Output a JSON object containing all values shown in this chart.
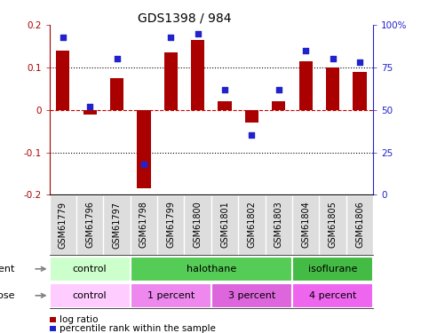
{
  "title": "GDS1398 / 984",
  "samples": [
    "GSM61779",
    "GSM61796",
    "GSM61797",
    "GSM61798",
    "GSM61799",
    "GSM61800",
    "GSM61801",
    "GSM61802",
    "GSM61803",
    "GSM61804",
    "GSM61805",
    "GSM61806"
  ],
  "log_ratio": [
    0.14,
    -0.01,
    0.075,
    -0.185,
    0.135,
    0.165,
    0.02,
    -0.03,
    0.02,
    0.115,
    0.1,
    0.09
  ],
  "percentile_rank": [
    93,
    52,
    80,
    18,
    93,
    95,
    62,
    35,
    62,
    85,
    80,
    78
  ],
  "ylim": [
    -0.2,
    0.2
  ],
  "yticks_left": [
    -0.2,
    -0.1,
    0.0,
    0.1,
    0.2
  ],
  "ytick_labels_left": [
    "-0.2",
    "-0.1",
    "0",
    "0.1",
    "0.2"
  ],
  "right_yticks": [
    0,
    25,
    50,
    75,
    100
  ],
  "right_yticklabels": [
    "0",
    "25",
    "50",
    "75",
    "100%"
  ],
  "bar_color": "#AA0000",
  "dot_color": "#2222CC",
  "agent_groups": [
    {
      "label": "control",
      "start": 0,
      "end": 3,
      "color": "#CCFFCC"
    },
    {
      "label": "halothane",
      "start": 3,
      "end": 9,
      "color": "#55CC55"
    },
    {
      "label": "isoflurane",
      "start": 9,
      "end": 12,
      "color": "#44BB44"
    }
  ],
  "dose_groups": [
    {
      "label": "control",
      "start": 0,
      "end": 3,
      "color": "#FFCCFF"
    },
    {
      "label": "1 percent",
      "start": 3,
      "end": 6,
      "color": "#EE88EE"
    },
    {
      "label": "3 percent",
      "start": 6,
      "end": 9,
      "color": "#DD66DD"
    },
    {
      "label": "4 percent",
      "start": 9,
      "end": 12,
      "color": "#EE66EE"
    }
  ],
  "bar_width": 0.5,
  "hlines": [
    -0.1,
    0.0,
    0.1
  ],
  "hline_styles": [
    "dotted",
    "dashed",
    "dotted"
  ],
  "hline_colors": [
    "black",
    "#CC0000",
    "black"
  ],
  "title_fontsize": 10,
  "axis_fontsize": 8,
  "label_fontsize": 7,
  "tick_fontsize": 7.5
}
